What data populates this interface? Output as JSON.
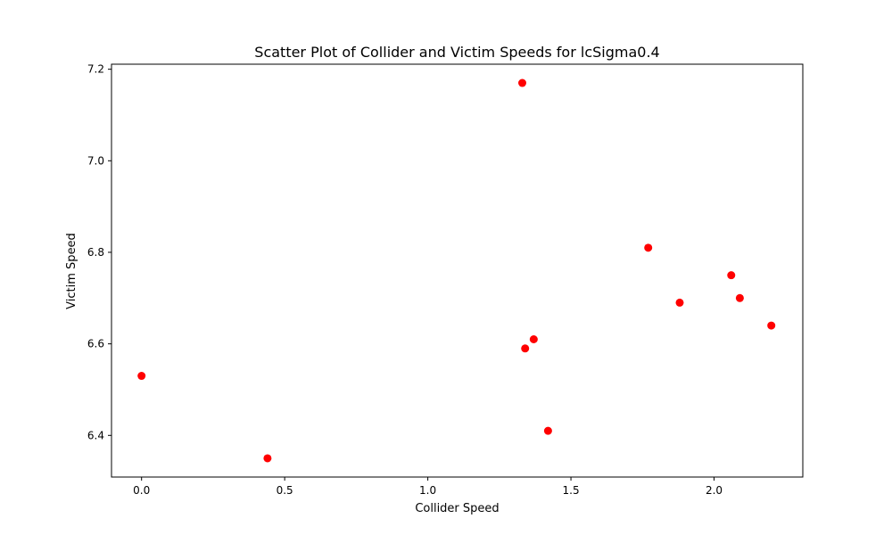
{
  "chart_data": {
    "type": "scatter",
    "title": "Scatter Plot of Collider and Victim Speeds for lcSigma0.4",
    "xlabel": "Collider Speed",
    "ylabel": "Victim Speed",
    "xlim": [
      -0.105,
      2.31
    ],
    "ylim": [
      6.309,
      7.211
    ],
    "xticks": [
      0.0,
      0.5,
      1.0,
      1.5,
      2.0
    ],
    "xtick_labels": [
      "0.0",
      "0.5",
      "1.0",
      "1.5",
      "2.0"
    ],
    "yticks": [
      6.4,
      6.6,
      6.8,
      7.0,
      7.2
    ],
    "ytick_labels": [
      "6.4",
      "6.6",
      "6.8",
      "7.0",
      "7.2"
    ],
    "grid": false,
    "legend": "none",
    "marker_color": "#ff0000",
    "points": [
      {
        "x": 0.0,
        "y": 6.53
      },
      {
        "x": 0.44,
        "y": 6.35
      },
      {
        "x": 1.33,
        "y": 7.17
      },
      {
        "x": 1.34,
        "y": 6.59
      },
      {
        "x": 1.37,
        "y": 6.61
      },
      {
        "x": 1.42,
        "y": 6.41
      },
      {
        "x": 1.77,
        "y": 6.81
      },
      {
        "x": 1.88,
        "y": 6.69
      },
      {
        "x": 2.06,
        "y": 6.75
      },
      {
        "x": 2.09,
        "y": 6.7
      },
      {
        "x": 2.2,
        "y": 6.64
      }
    ]
  }
}
